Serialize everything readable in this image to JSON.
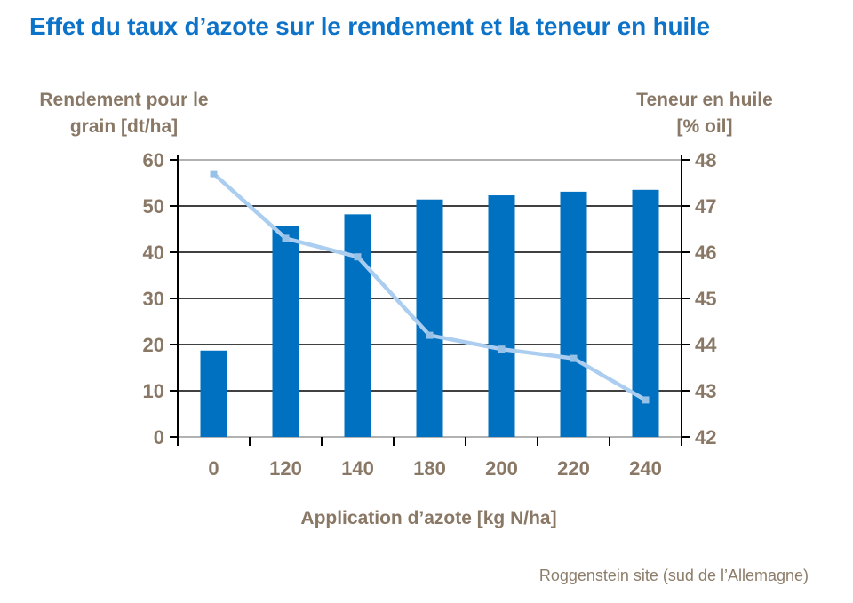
{
  "title": "Effet du taux d’azote sur le rendement et la teneur en huile",
  "footer": "Roggenstein site (sud de l’Allemagne)",
  "chart_data": {
    "type": "bar",
    "subtype": "bar+line dual axis",
    "categories": [
      "0",
      "120",
      "140",
      "180",
      "200",
      "220",
      "240"
    ],
    "series": [
      {
        "name": "Rendement pour le grain",
        "type": "bar",
        "axis": "left",
        "values": [
          18.7,
          45.6,
          48.2,
          51.4,
          52.3,
          53.1,
          53.5
        ]
      },
      {
        "name": "Teneur en huile",
        "type": "line",
        "axis": "right",
        "values": [
          47.7,
          46.3,
          45.9,
          44.2,
          43.9,
          43.7,
          42.8
        ]
      }
    ],
    "left_axis": {
      "title": "Rendement pour le\ngrain [dt/ha]",
      "min": 0,
      "max": 60,
      "ticks": [
        0,
        10,
        20,
        30,
        40,
        50,
        60
      ]
    },
    "right_axis": {
      "title": "Teneur en huile\n[% oil]",
      "min": 42,
      "max": 48,
      "ticks": [
        42,
        43,
        44,
        45,
        46,
        47,
        48
      ]
    },
    "x_axis": {
      "title": "Application d’azote [kg N/ha]"
    },
    "grid": true,
    "legend": "none",
    "colors": {
      "title_text": "#0d73c8",
      "axis_text": "#8a7866",
      "bar": "#0070C0",
      "line": "#AACDF0",
      "marker": "#98C1E8",
      "gridline": "#000000",
      "plot_border": "#999999",
      "axis_line": "#000000"
    }
  }
}
